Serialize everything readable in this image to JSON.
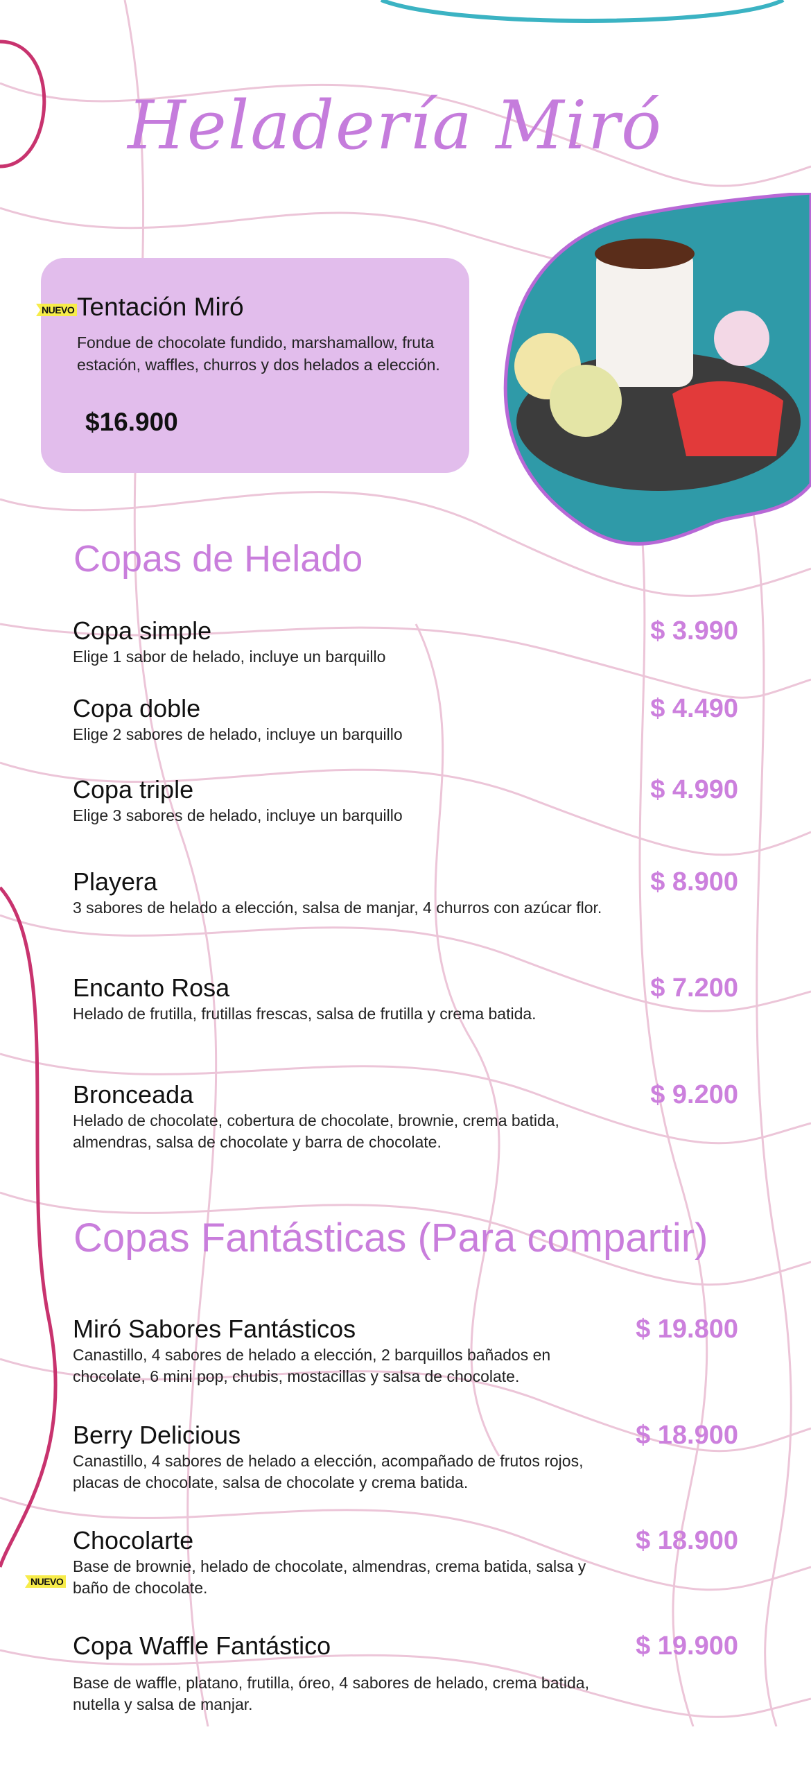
{
  "header": {
    "title": "Heladería Miró"
  },
  "featured": {
    "badge": "NUEVO",
    "name": "Tentación Miró",
    "description": "Fondue de chocolate fundido, marshamallow, fruta estación, waffles, churros y dos helados a elección.",
    "price": "$16.900"
  },
  "sections": [
    {
      "title": "Copas de Helado",
      "items": [
        {
          "name": "Copa simple",
          "description": "Elige 1 sabor de helado, incluye un barquillo",
          "price": "$ 3.990"
        },
        {
          "name": "Copa doble",
          "description": "Elige 2 sabores de helado, incluye un barquillo",
          "price": "$ 4.490"
        },
        {
          "name": "Copa triple",
          "description": "Elige 3 sabores de helado, incluye un barquillo",
          "price": "$ 4.990"
        },
        {
          "name": "Playera",
          "description": "3 sabores de helado a elección, salsa de manjar, 4 churros con azúcar flor.",
          "price": "$ 8.900"
        },
        {
          "name": "Encanto Rosa",
          "description": "Helado de frutilla, frutillas frescas, salsa de frutilla y crema batida.",
          "price": "$ 7.200"
        },
        {
          "name": "Bronceada",
          "description": "Helado de chocolate, cobertura de chocolate, brownie, crema batida, almendras, salsa de chocolate y barra de chocolate.",
          "price": "$ 9.200"
        }
      ]
    },
    {
      "title": "Copas Fantásticas (Para compartir)",
      "items": [
        {
          "name": "Miró Sabores Fantásticos",
          "description": "Canastillo, 4 sabores de helado a elección, 2 barquillos bañados en chocolate, 6 mini pop, chubis, mostacillas y salsa de chocolate.",
          "price": "$ 19.800"
        },
        {
          "name": "Berry Delicious",
          "description": "Canastillo, 4 sabores de helado a elección, acompañado de frutos rojos, placas de chocolate, salsa de chocolate y crema batida.",
          "price": "$ 18.900"
        },
        {
          "name": "Chocolarte",
          "badge": "NUEVO",
          "description": "Base de brownie, helado de chocolate, almendras, crema batida, salsa y baño de chocolate.",
          "price": "$ 18.900"
        },
        {
          "name": "Copa Waffle Fantástico",
          "description": "Base de waffle, platano, frutilla, óreo, 4 sabores de helado, crema batida, nutella y salsa de manjar.",
          "price": "$ 19.900"
        }
      ]
    }
  ],
  "colors": {
    "accent": "#c97edc",
    "card": "#e2bdec",
    "badge": "#f7ec4a",
    "contour": "#ecc5d8",
    "magenta_line": "#c8336e",
    "teal": "#3bb3c3"
  }
}
